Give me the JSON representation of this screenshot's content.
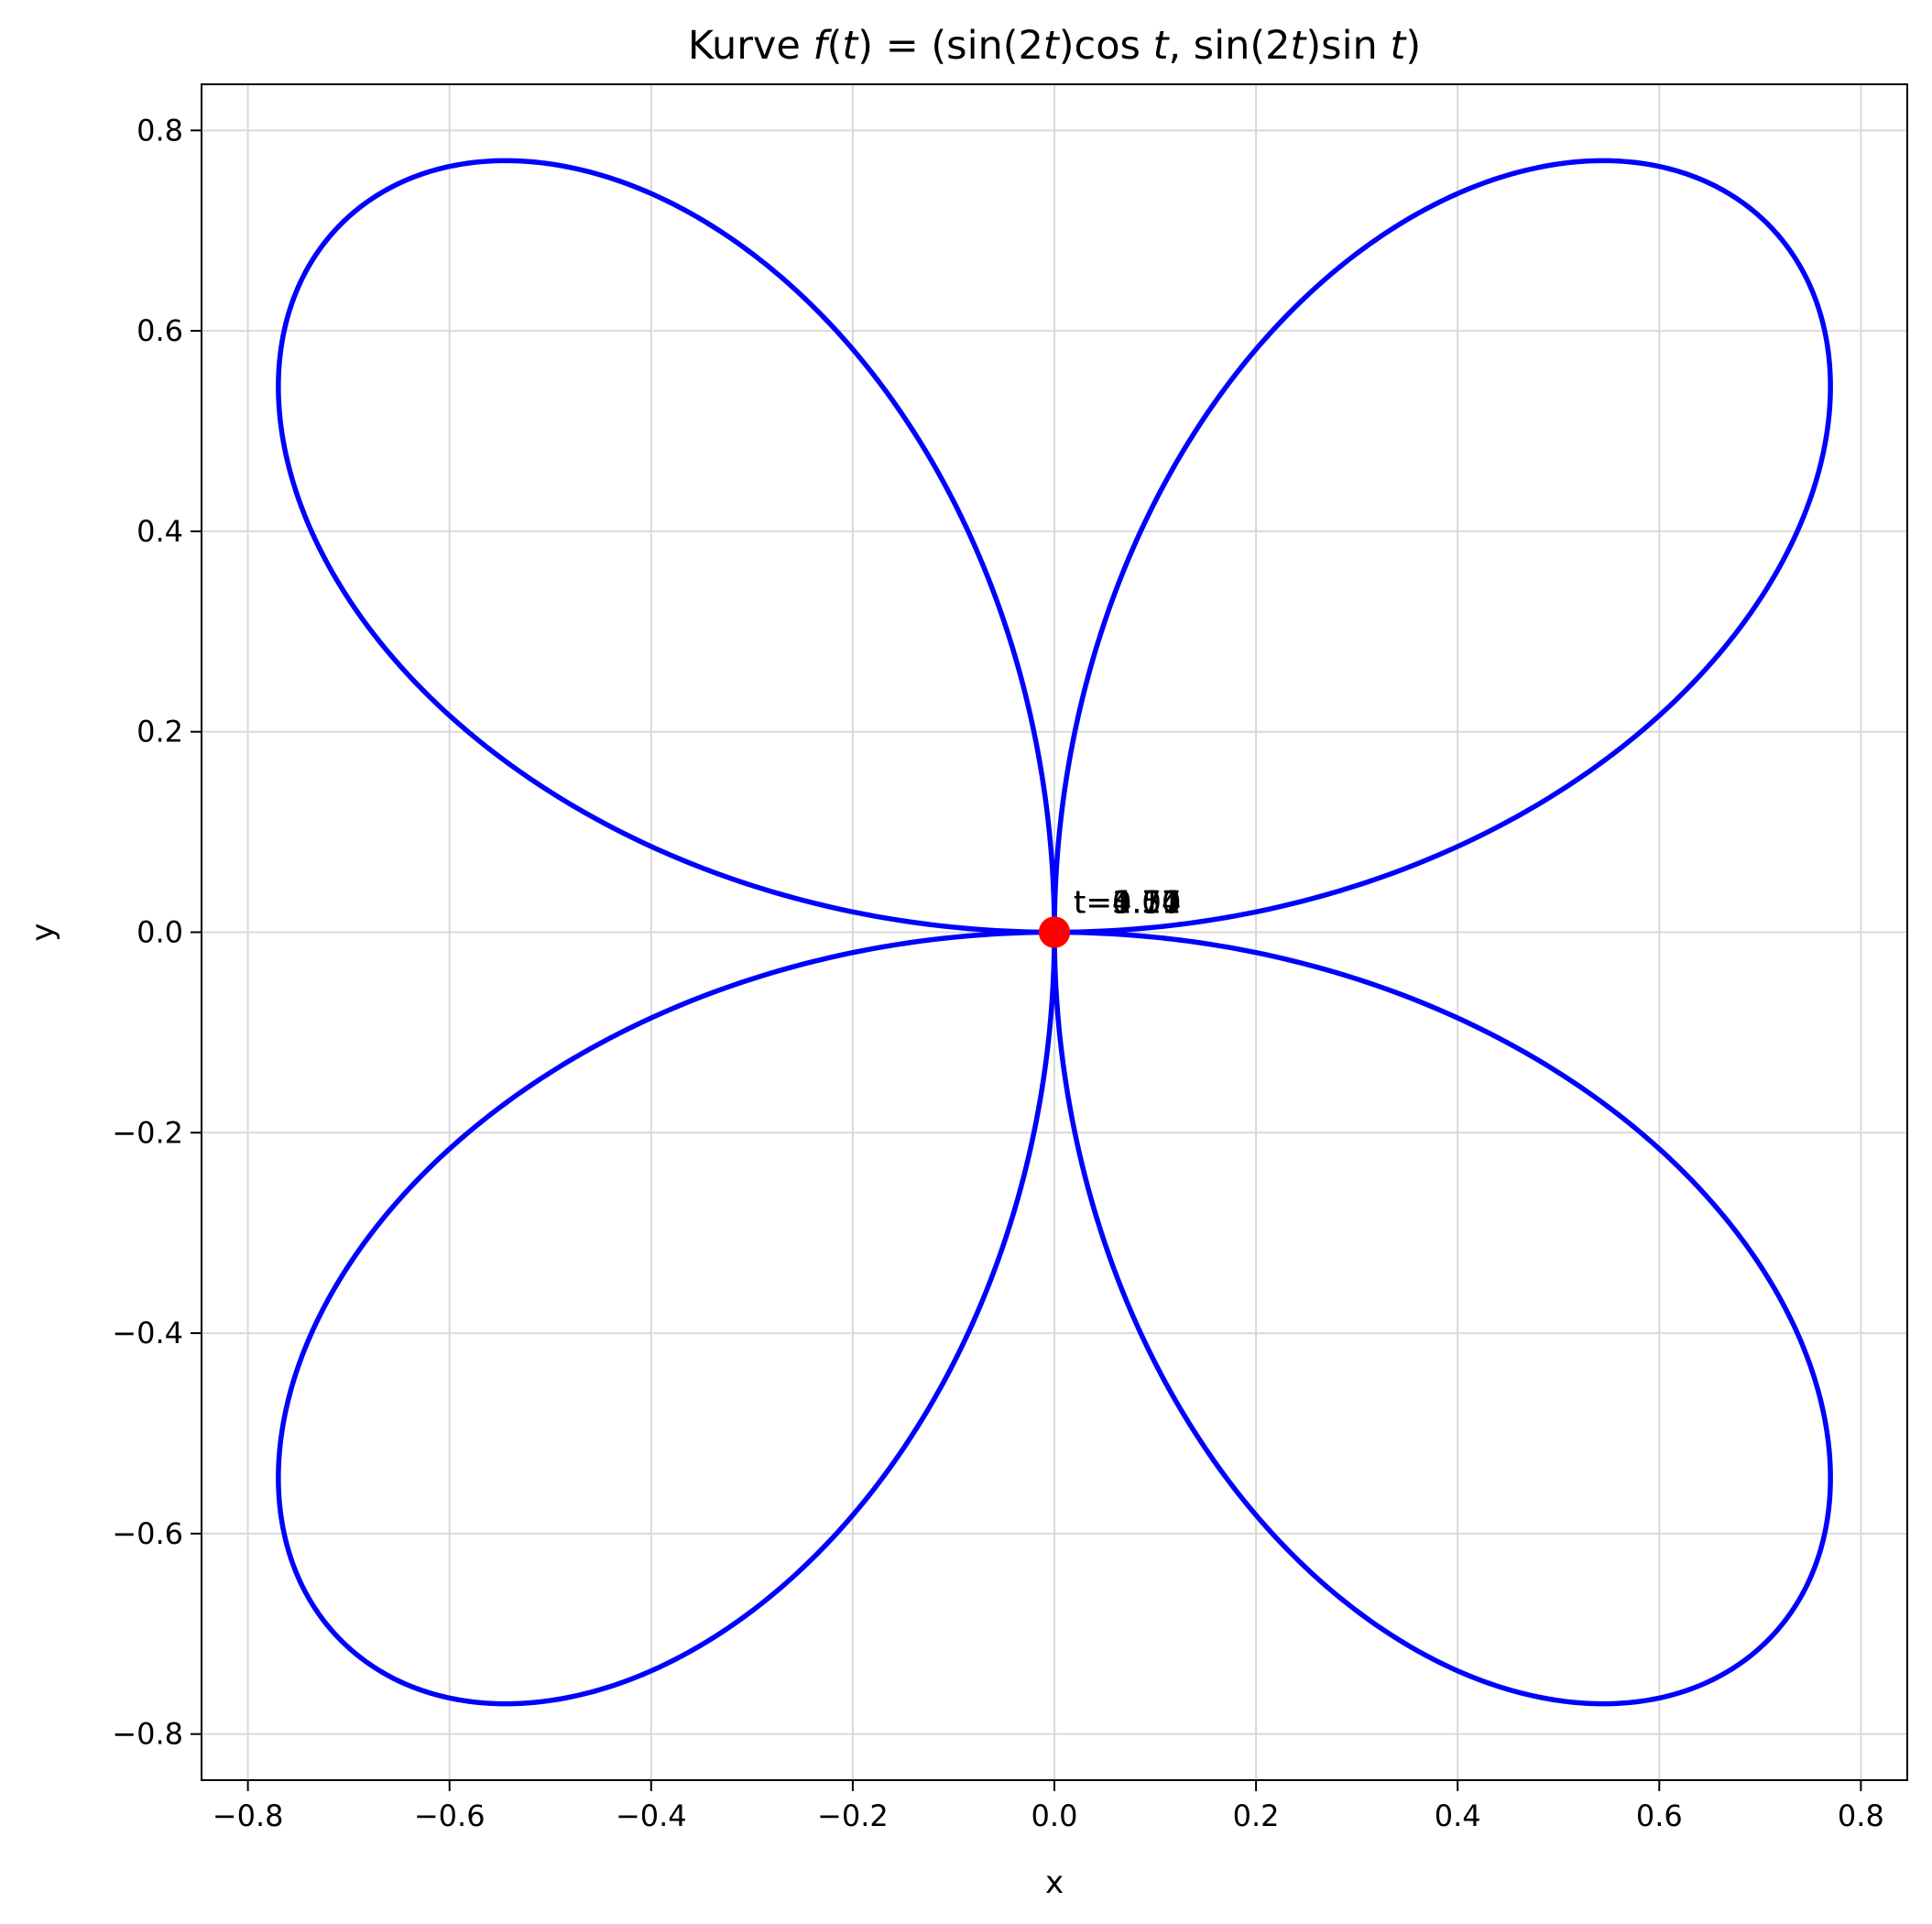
{
  "chart_data": {
    "type": "line",
    "title": {
      "prefix": "Kurve ",
      "formula": "f(t) = (sin(2t)cos t, sin(2t)sin t)",
      "formula_parts": [
        {
          "text": "f",
          "italic": true
        },
        {
          "text": "(",
          "italic": false
        },
        {
          "text": "t",
          "italic": true
        },
        {
          "text": ") = (sin(2",
          "italic": false
        },
        {
          "text": "t",
          "italic": true
        },
        {
          "text": ")cos ",
          "italic": false
        },
        {
          "text": "t",
          "italic": true
        },
        {
          "text": ", sin(2",
          "italic": false
        },
        {
          "text": "t",
          "italic": true
        },
        {
          "text": ")sin ",
          "italic": false
        },
        {
          "text": "t",
          "italic": true
        },
        {
          "text": ")",
          "italic": false
        }
      ]
    },
    "xlabel": "x",
    "ylabel": "y",
    "xlim": [
      -0.846,
      0.846
    ],
    "ylim": [
      -0.846,
      0.846
    ],
    "xticks": [
      -0.8,
      -0.6,
      -0.4,
      -0.2,
      0.0,
      0.2,
      0.4,
      0.6,
      0.8
    ],
    "yticks": [
      -0.8,
      -0.6,
      -0.4,
      -0.2,
      0.0,
      0.2,
      0.4,
      0.6,
      0.8
    ],
    "xtick_labels": [
      "−0.8",
      "−0.6",
      "−0.4",
      "−0.2",
      "0.0",
      "0.2",
      "0.4",
      "0.6",
      "0.8"
    ],
    "ytick_labels": [
      "−0.8",
      "−0.6",
      "−0.4",
      "−0.2",
      "0.0",
      "0.2",
      "0.4",
      "0.6",
      "0.8"
    ],
    "grid": true,
    "series": [
      {
        "function": "x = sin(2t)·cos(t), y = sin(2t)·sin(t)",
        "t_range": [
          0,
          6.283185
        ],
        "color": "#0000ff"
      }
    ],
    "marked_points": [
      {
        "x": 0.0,
        "y": 0.0,
        "color": "#ff0000",
        "label": "t=0.00"
      },
      {
        "x": 0.0,
        "y": 0.0,
        "color": "#ff0000",
        "label": "t=1.57"
      },
      {
        "x": 0.0,
        "y": 0.0,
        "color": "#ff0000",
        "label": "t=3.14"
      },
      {
        "x": 0.0,
        "y": 0.0,
        "color": "#ff0000",
        "label": "t=4.71"
      }
    ]
  }
}
